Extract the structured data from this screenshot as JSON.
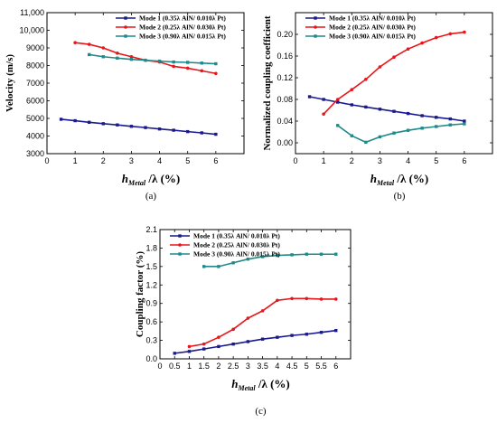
{
  "chart_data": [
    {
      "type": "line",
      "panel": "a",
      "caption": "(a)",
      "ylabel": "Velocity (m/s)",
      "xlabel": {
        "main": "h",
        "sub": "Metal",
        "rest": " /λ (%)"
      },
      "xlim": [
        0,
        7
      ],
      "ylim": [
        3000,
        11000
      ],
      "xticks": [
        0,
        1,
        2,
        3,
        4,
        5,
        6
      ],
      "yticks": [
        "3000",
        "4000",
        "5000",
        "6000",
        "7000",
        "8000",
        "9000",
        "10,000",
        "11,000"
      ],
      "ytick_values": [
        3000,
        4000,
        5000,
        6000,
        7000,
        8000,
        9000,
        10000,
        11000
      ],
      "legend_position": "top-right",
      "series": [
        {
          "name": "Mode 1 (0.35λ AlN/ 0.010λ Pt)",
          "color": "#1a1a8c",
          "x": [
            0.5,
            1,
            1.5,
            2,
            2.5,
            3,
            3.5,
            4,
            4.5,
            5,
            5.5,
            6
          ],
          "y": [
            4950,
            4870,
            4780,
            4700,
            4630,
            4550,
            4480,
            4400,
            4330,
            4250,
            4180,
            4100
          ]
        },
        {
          "name": "Mode 2 (0.25λ AlN/ 0.030λ Pt)",
          "color": "#e8161b",
          "x": [
            1,
            1.5,
            2,
            2.5,
            3,
            3.5,
            4,
            4.5,
            5,
            5.5,
            6
          ],
          "y": [
            9300,
            9200,
            9000,
            8700,
            8500,
            8300,
            8200,
            7950,
            7850,
            7700,
            7550
          ]
        },
        {
          "name": "Mode 3 (0.90λ AlN/ 0.015λ Pt)",
          "color": "#1f8a8a",
          "x": [
            1.5,
            2,
            2.5,
            3,
            3.5,
            4,
            4.5,
            5,
            5.5,
            6
          ],
          "y": [
            8620,
            8500,
            8420,
            8350,
            8300,
            8250,
            8200,
            8180,
            8140,
            8100
          ]
        }
      ]
    },
    {
      "type": "line",
      "panel": "b",
      "caption": "(b)",
      "ylabel": "Normalized coupling coefficient",
      "xlabel": {
        "main": "h",
        "sub": "Metal",
        "rest": " /λ (%)"
      },
      "xlim": [
        0,
        7
      ],
      "ylim": [
        -0.02,
        0.24
      ],
      "xticks": [
        0,
        1,
        2,
        3,
        4,
        5,
        6
      ],
      "yticks": [
        "0.00",
        "0.04",
        "0.08",
        "0.12",
        "0.16",
        "0.20"
      ],
      "ytick_values": [
        0,
        0.04,
        0.08,
        0.12,
        0.16,
        0.2
      ],
      "legend_position": "top-right",
      "series": [
        {
          "name": "Mode 1 (0.35λ AlN/ 0.010λ Pt)",
          "color": "#1a1a8c",
          "x": [
            0.5,
            1,
            1.5,
            2,
            2.5,
            3,
            3.5,
            4,
            4.5,
            5,
            5.5,
            6
          ],
          "y": [
            0.085,
            0.08,
            0.075,
            0.07,
            0.066,
            0.062,
            0.058,
            0.054,
            0.05,
            0.047,
            0.044,
            0.04
          ]
        },
        {
          "name": "Mode 2 (0.25λ AlN/ 0.030λ Pt)",
          "color": "#e8161b",
          "x": [
            1,
            1.5,
            2,
            2.5,
            3,
            3.5,
            4,
            4.5,
            5,
            5.5,
            6
          ],
          "y": [
            0.053,
            0.08,
            0.098,
            0.117,
            0.14,
            0.158,
            0.173,
            0.184,
            0.194,
            0.201,
            0.204
          ]
        },
        {
          "name": "Mode 3 (0.90λ AlN/ 0.015λ Pt)",
          "color": "#1f8a8a",
          "x": [
            1.5,
            2,
            2.5,
            3,
            3.5,
            4,
            4.5,
            5,
            5.5,
            6
          ],
          "y": [
            0.032,
            0.013,
            0.001,
            0.011,
            0.018,
            0.023,
            0.027,
            0.03,
            0.033,
            0.035
          ]
        }
      ]
    },
    {
      "type": "line",
      "panel": "c",
      "caption": "(c)",
      "ylabel": "Coupling factor (%)",
      "xlabel": {
        "main": "h",
        "sub": "Metal",
        "rest": " /λ (%)"
      },
      "xlim": [
        0,
        6.5
      ],
      "ylim": [
        0,
        2.1
      ],
      "xticks": [
        0,
        0.5,
        1,
        1.5,
        2,
        2.5,
        3,
        3.5,
        4,
        4.5,
        5,
        5.5,
        6
      ],
      "yticks": [
        "0.0",
        "0.3",
        "0.6",
        "0.9",
        "1.2",
        "1.5",
        "1.8",
        "2.1"
      ],
      "ytick_values": [
        0,
        0.3,
        0.6,
        0.9,
        1.2,
        1.5,
        1.8,
        2.1
      ],
      "legend_position": "top-left",
      "series": [
        {
          "name": "Mode 1 (0.35λ AlN/ 0.010λ Pt)",
          "color": "#1a1a8c",
          "x": [
            0.5,
            1,
            1.5,
            2,
            2.5,
            3,
            3.5,
            4,
            4.5,
            5,
            5.5,
            6
          ],
          "y": [
            0.09,
            0.12,
            0.16,
            0.2,
            0.24,
            0.28,
            0.32,
            0.35,
            0.38,
            0.4,
            0.43,
            0.46
          ]
        },
        {
          "name": "Mode 2 (0.25λ AlN/ 0.030λ Pt)",
          "color": "#e8161b",
          "x": [
            1,
            1.5,
            2,
            2.5,
            3,
            3.5,
            4,
            4.5,
            5,
            5.5,
            6
          ],
          "y": [
            0.2,
            0.24,
            0.35,
            0.48,
            0.66,
            0.78,
            0.95,
            0.98,
            0.98,
            0.97,
            0.97
          ]
        },
        {
          "name": "Mode 3 (0.90λ AlN/ 0.015λ Pt)",
          "color": "#1f8a8a",
          "x": [
            1.5,
            2,
            2.5,
            3,
            3.5,
            4,
            4.5,
            5,
            5.5,
            6
          ],
          "y": [
            1.5,
            1.5,
            1.56,
            1.62,
            1.66,
            1.68,
            1.69,
            1.7,
            1.7,
            1.7
          ]
        }
      ]
    }
  ]
}
